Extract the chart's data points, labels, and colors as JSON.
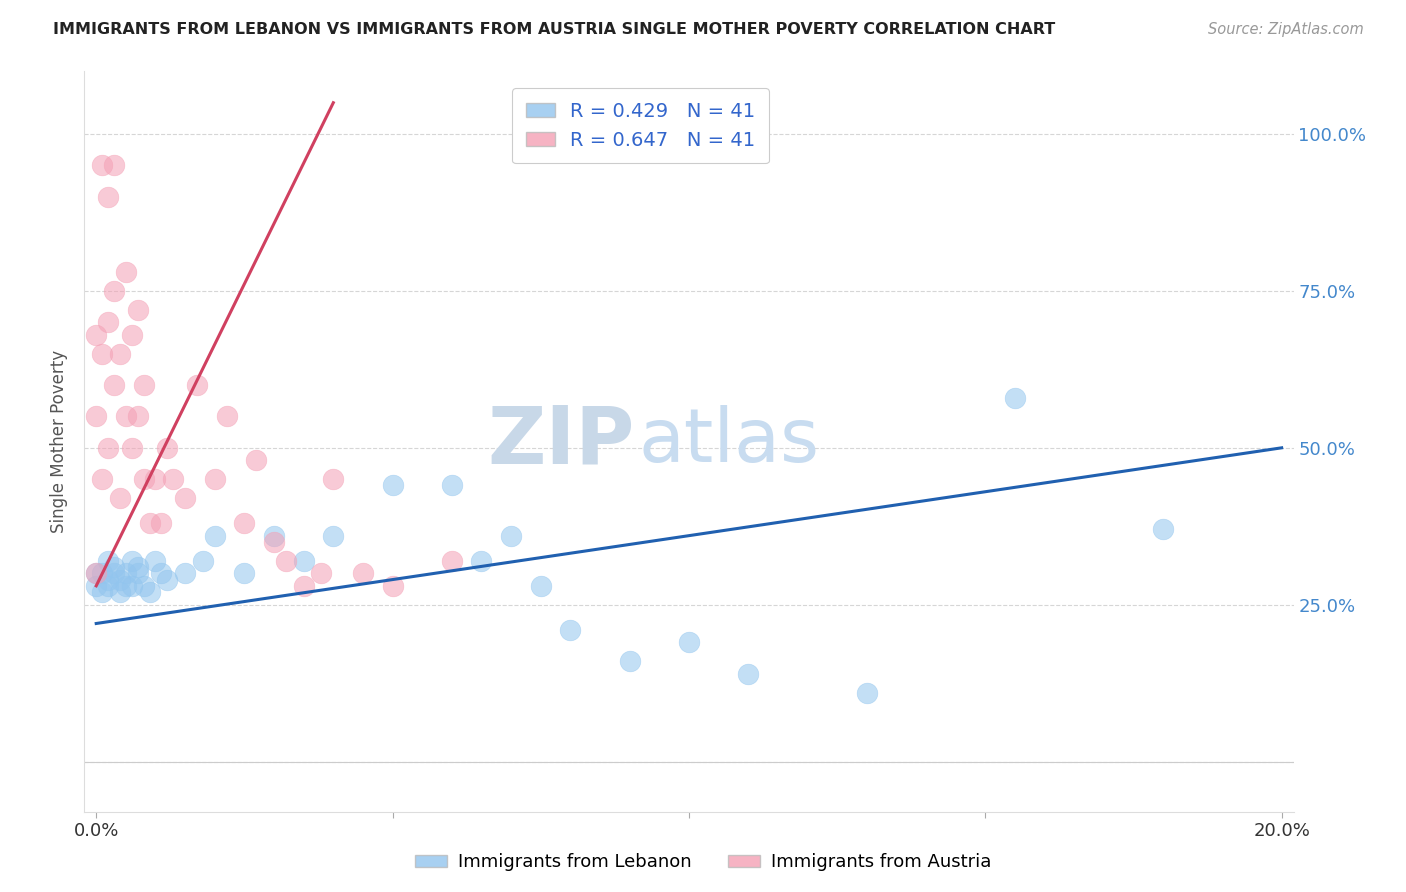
{
  "title": "IMMIGRANTS FROM LEBANON VS IMMIGRANTS FROM AUSTRIA SINGLE MOTHER POVERTY CORRELATION CHART",
  "source": "Source: ZipAtlas.com",
  "ylabel": "Single Mother Poverty",
  "xlim": [
    0.0,
    0.2
  ],
  "ylim": [
    -0.08,
    1.1
  ],
  "yticks": [
    0.0,
    0.25,
    0.5,
    0.75,
    1.0
  ],
  "ytick_labels_right": [
    "",
    "25.0%",
    "50.0%",
    "75.0%",
    "100.0%"
  ],
  "xticks": [
    0.0,
    0.05,
    0.1,
    0.15,
    0.2
  ],
  "xtick_labels": [
    "0.0%",
    "",
    "",
    "",
    "20.0%"
  ],
  "R_lebanon": 0.429,
  "N_lebanon": 41,
  "R_austria": 0.647,
  "N_austria": 41,
  "color_lebanon": "#92C5EE",
  "color_austria": "#F4A0B5",
  "line_color_lebanon": "#2060B0",
  "line_color_austria": "#D04060",
  "watermark_text": "ZIPatlas",
  "watermark_color": "#D8E8F8",
  "legend_label_lebanon": "Immigrants from Lebanon",
  "legend_label_austria": "Immigrants from Austria",
  "lebanon_x": [
    0.0,
    0.0,
    0.001,
    0.001,
    0.002,
    0.002,
    0.002,
    0.003,
    0.003,
    0.004,
    0.004,
    0.005,
    0.005,
    0.006,
    0.006,
    0.007,
    0.007,
    0.008,
    0.009,
    0.01,
    0.011,
    0.012,
    0.015,
    0.018,
    0.02,
    0.025,
    0.03,
    0.035,
    0.04,
    0.05,
    0.06,
    0.065,
    0.07,
    0.075,
    0.08,
    0.09,
    0.1,
    0.11,
    0.13,
    0.155,
    0.18
  ],
  "lebanon_y": [
    0.28,
    0.3,
    0.27,
    0.3,
    0.29,
    0.32,
    0.28,
    0.3,
    0.31,
    0.27,
    0.29,
    0.28,
    0.3,
    0.32,
    0.28,
    0.3,
    0.31,
    0.28,
    0.27,
    0.32,
    0.3,
    0.29,
    0.3,
    0.32,
    0.36,
    0.3,
    0.36,
    0.32,
    0.36,
    0.44,
    0.44,
    0.32,
    0.36,
    0.28,
    0.21,
    0.16,
    0.19,
    0.14,
    0.11,
    0.58,
    0.37
  ],
  "austria_x": [
    0.0,
    0.0,
    0.0,
    0.001,
    0.001,
    0.001,
    0.002,
    0.002,
    0.002,
    0.003,
    0.003,
    0.003,
    0.004,
    0.004,
    0.005,
    0.005,
    0.006,
    0.006,
    0.007,
    0.007,
    0.008,
    0.008,
    0.009,
    0.01,
    0.011,
    0.012,
    0.013,
    0.015,
    0.017,
    0.02,
    0.022,
    0.025,
    0.027,
    0.03,
    0.032,
    0.035,
    0.038,
    0.04,
    0.045,
    0.05,
    0.06
  ],
  "austria_y": [
    0.3,
    0.55,
    0.68,
    0.45,
    0.65,
    0.95,
    0.5,
    0.7,
    0.9,
    0.6,
    0.75,
    0.95,
    0.42,
    0.65,
    0.55,
    0.78,
    0.5,
    0.68,
    0.55,
    0.72,
    0.45,
    0.6,
    0.38,
    0.45,
    0.38,
    0.5,
    0.45,
    0.42,
    0.6,
    0.45,
    0.55,
    0.38,
    0.48,
    0.35,
    0.32,
    0.28,
    0.3,
    0.45,
    0.3,
    0.28,
    0.32
  ],
  "leb_line_x": [
    0.0,
    0.2
  ],
  "leb_line_y": [
    0.22,
    0.5
  ],
  "aut_line_x": [
    0.0,
    0.04
  ],
  "aut_line_y": [
    0.28,
    1.05
  ]
}
